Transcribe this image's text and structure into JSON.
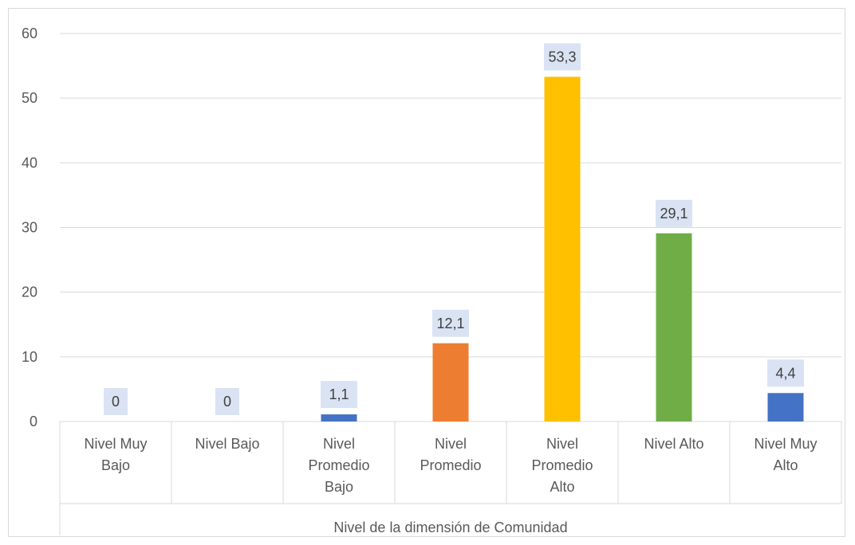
{
  "chart_data": {
    "type": "bar",
    "categories": [
      [
        "Nivel Muy",
        "Bajo"
      ],
      [
        "Nivel Bajo"
      ],
      [
        "Nivel",
        "Promedio",
        "Bajo"
      ],
      [
        "Nivel",
        "Promedio"
      ],
      [
        "Nivel",
        "Promedio",
        "Alto"
      ],
      [
        "Nivel Alto"
      ],
      [
        "Nivel Muy",
        "Alto"
      ]
    ],
    "values": [
      0,
      0,
      1.1,
      12.1,
      53.3,
      29.1,
      4.4
    ],
    "data_labels": [
      "0",
      "0",
      "1,1",
      "12,1",
      "53,3",
      "29,1",
      "4,4"
    ],
    "colors": [
      "#4472c4",
      "#4472c4",
      "#4472c4",
      "#ed7d31",
      "#ffc000",
      "#70ad47",
      "#4472c4"
    ],
    "xlabel": "Nivel de la dimensión de Comunidad",
    "ylabel": "",
    "ylim": [
      0,
      60
    ],
    "yticks": [
      0,
      10,
      20,
      30,
      40,
      50,
      60
    ],
    "grid": true,
    "data_label_bg": "#dae3f3"
  }
}
